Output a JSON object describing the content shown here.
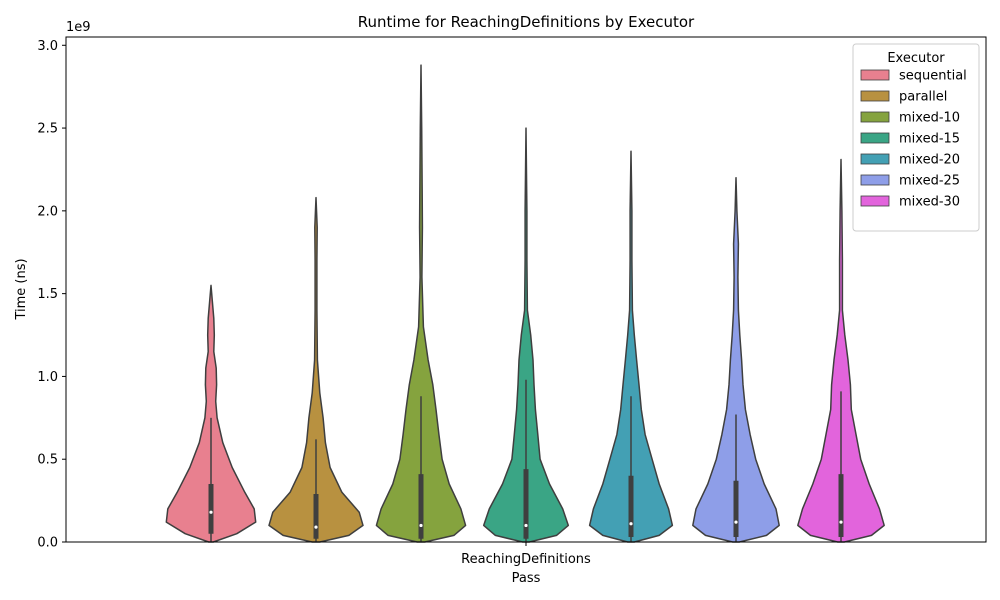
{
  "chart_data": {
    "type": "violin",
    "title": "Runtime for ReachingDefinitions by Executor",
    "xlabel": "Pass",
    "ylabel": "Time (ns)",
    "y_offset_label": "1e9",
    "categories": [
      "ReachingDefinitions"
    ],
    "ylim": [
      0,
      3.05
    ],
    "y_ticks": [
      0.0,
      0.5,
      1.0,
      1.5,
      2.0,
      2.5,
      3.0
    ],
    "y_tick_labels": [
      "0.0",
      "0.5",
      "1.0",
      "1.5",
      "2.0",
      "2.5",
      "3.0"
    ],
    "grid": false,
    "legend": {
      "title": "Executor",
      "position": "top-right"
    },
    "series": [
      {
        "name": "sequential",
        "color": "#e8808f",
        "min": 0.0,
        "q1": 0.05,
        "median": 0.18,
        "q3": 0.35,
        "whisker_high": 0.75,
        "max": 1.55,
        "density": [
          [
            0.0,
            0.05
          ],
          [
            0.05,
            0.55
          ],
          [
            0.12,
            0.95
          ],
          [
            0.2,
            0.92
          ],
          [
            0.3,
            0.72
          ],
          [
            0.45,
            0.45
          ],
          [
            0.6,
            0.25
          ],
          [
            0.75,
            0.13
          ],
          [
            0.85,
            0.1
          ],
          [
            0.95,
            0.12
          ],
          [
            1.05,
            0.11
          ],
          [
            1.15,
            0.06
          ],
          [
            1.25,
            0.07
          ],
          [
            1.35,
            0.06
          ],
          [
            1.45,
            0.03
          ],
          [
            1.55,
            0.0
          ]
        ]
      },
      {
        "name": "parallel",
        "color": "#b89140",
        "min": 0.0,
        "q1": 0.02,
        "median": 0.09,
        "q3": 0.29,
        "whisker_high": 0.62,
        "max": 2.08,
        "density": [
          [
            0.0,
            0.08
          ],
          [
            0.04,
            0.7
          ],
          [
            0.1,
            1.0
          ],
          [
            0.18,
            0.92
          ],
          [
            0.3,
            0.55
          ],
          [
            0.45,
            0.3
          ],
          [
            0.6,
            0.2
          ],
          [
            0.75,
            0.15
          ],
          [
            0.9,
            0.08
          ],
          [
            1.1,
            0.03
          ],
          [
            1.4,
            0.02
          ],
          [
            1.7,
            0.02
          ],
          [
            1.9,
            0.025
          ],
          [
            2.08,
            0.0
          ]
        ]
      },
      {
        "name": "mixed-10",
        "color": "#85a33e",
        "min": 0.0,
        "q1": 0.02,
        "median": 0.1,
        "q3": 0.41,
        "whisker_high": 0.88,
        "max": 2.88,
        "density": [
          [
            0.0,
            0.08
          ],
          [
            0.04,
            0.7
          ],
          [
            0.1,
            0.95
          ],
          [
            0.2,
            0.85
          ],
          [
            0.35,
            0.6
          ],
          [
            0.5,
            0.45
          ],
          [
            0.65,
            0.38
          ],
          [
            0.8,
            0.32
          ],
          [
            0.95,
            0.25
          ],
          [
            1.1,
            0.15
          ],
          [
            1.3,
            0.05
          ],
          [
            1.6,
            0.02
          ],
          [
            1.9,
            0.03
          ],
          [
            2.1,
            0.025
          ],
          [
            2.5,
            0.015
          ],
          [
            2.88,
            0.0
          ]
        ]
      },
      {
        "name": "mixed-15",
        "color": "#3aa585",
        "min": 0.0,
        "q1": 0.02,
        "median": 0.1,
        "q3": 0.44,
        "whisker_high": 0.98,
        "max": 2.5,
        "density": [
          [
            0.0,
            0.07
          ],
          [
            0.04,
            0.65
          ],
          [
            0.1,
            0.9
          ],
          [
            0.2,
            0.78
          ],
          [
            0.35,
            0.5
          ],
          [
            0.5,
            0.3
          ],
          [
            0.65,
            0.25
          ],
          [
            0.8,
            0.2
          ],
          [
            0.95,
            0.17
          ],
          [
            1.1,
            0.15
          ],
          [
            1.25,
            0.1
          ],
          [
            1.4,
            0.03
          ],
          [
            1.7,
            0.02
          ],
          [
            2.0,
            0.02
          ],
          [
            2.5,
            0.0
          ]
        ]
      },
      {
        "name": "mixed-20",
        "color": "#43a0b4",
        "min": 0.0,
        "q1": 0.03,
        "median": 0.11,
        "q3": 0.4,
        "whisker_high": 0.88,
        "max": 2.36,
        "density": [
          [
            0.0,
            0.07
          ],
          [
            0.04,
            0.6
          ],
          [
            0.1,
            0.88
          ],
          [
            0.2,
            0.8
          ],
          [
            0.35,
            0.6
          ],
          [
            0.5,
            0.45
          ],
          [
            0.65,
            0.3
          ],
          [
            0.8,
            0.22
          ],
          [
            0.95,
            0.17
          ],
          [
            1.1,
            0.12
          ],
          [
            1.25,
            0.07
          ],
          [
            1.4,
            0.03
          ],
          [
            1.7,
            0.02
          ],
          [
            2.0,
            0.02
          ],
          [
            2.36,
            0.0
          ]
        ]
      },
      {
        "name": "mixed-25",
        "color": "#8e9ee8",
        "min": 0.0,
        "q1": 0.03,
        "median": 0.12,
        "q3": 0.37,
        "whisker_high": 0.77,
        "max": 2.2,
        "density": [
          [
            0.0,
            0.07
          ],
          [
            0.04,
            0.65
          ],
          [
            0.1,
            0.92
          ],
          [
            0.2,
            0.85
          ],
          [
            0.35,
            0.6
          ],
          [
            0.5,
            0.42
          ],
          [
            0.65,
            0.3
          ],
          [
            0.8,
            0.2
          ],
          [
            0.95,
            0.15
          ],
          [
            1.1,
            0.12
          ],
          [
            1.25,
            0.08
          ],
          [
            1.4,
            0.05
          ],
          [
            1.6,
            0.04
          ],
          [
            1.8,
            0.05
          ],
          [
            2.0,
            0.02
          ],
          [
            2.2,
            0.0
          ]
        ]
      },
      {
        "name": "mixed-30",
        "color": "#e264dc",
        "min": 0.0,
        "q1": 0.03,
        "median": 0.12,
        "q3": 0.41,
        "whisker_high": 0.91,
        "max": 2.31,
        "density": [
          [
            0.0,
            0.07
          ],
          [
            0.04,
            0.65
          ],
          [
            0.1,
            0.92
          ],
          [
            0.2,
            0.82
          ],
          [
            0.35,
            0.6
          ],
          [
            0.5,
            0.42
          ],
          [
            0.65,
            0.32
          ],
          [
            0.8,
            0.22
          ],
          [
            0.95,
            0.2
          ],
          [
            1.1,
            0.15
          ],
          [
            1.25,
            0.08
          ],
          [
            1.4,
            0.03
          ],
          [
            1.7,
            0.03
          ],
          [
            2.0,
            0.02
          ],
          [
            2.31,
            0.0
          ]
        ]
      }
    ]
  }
}
